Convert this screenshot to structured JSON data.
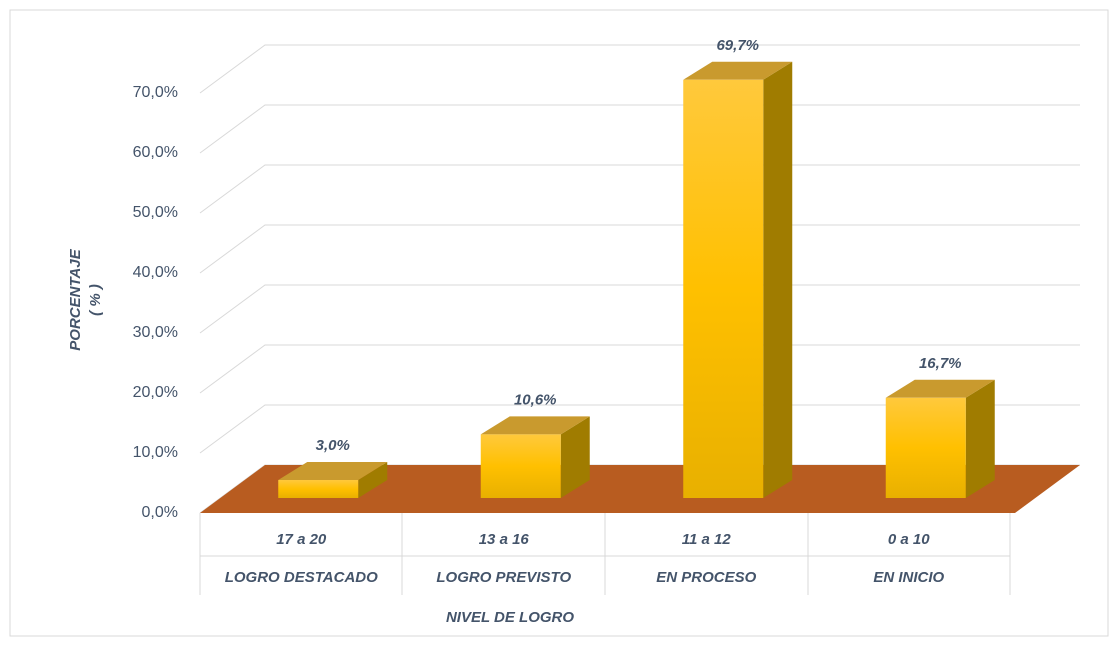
{
  "chart_data": {
    "type": "bar3d",
    "categories": [
      "17 a 20",
      "13 a 16",
      "11 a 12",
      "0 a 10"
    ],
    "subcategories": [
      "LOGRO DESTACADO",
      "LOGRO PREVISTO",
      "EN PROCESO",
      "EN INICIO"
    ],
    "values": [
      3.0,
      10.6,
      69.7,
      16.7
    ],
    "value_labels": [
      "3,0%",
      "10,6%",
      "69,7%",
      "16,7%"
    ],
    "color": "#ffc000",
    "floor_color": "#b85c20",
    "ylabel": [
      "PORCENTAJE",
      "( % )"
    ],
    "xlabel": "NIVEL DE LOGRO",
    "ylim": [
      0,
      70
    ],
    "yticks": [
      {
        "value": 0,
        "label": "0,0%"
      },
      {
        "value": 10,
        "label": "10,0%"
      },
      {
        "value": 20,
        "label": "20,0%"
      },
      {
        "value": 30,
        "label": "30,0%"
      },
      {
        "value": 40,
        "label": "40,0%"
      },
      {
        "value": 50,
        "label": "50,0%"
      },
      {
        "value": 60,
        "label": "60,0%"
      },
      {
        "value": 70,
        "label": "70,0%"
      }
    ],
    "grid": true
  }
}
